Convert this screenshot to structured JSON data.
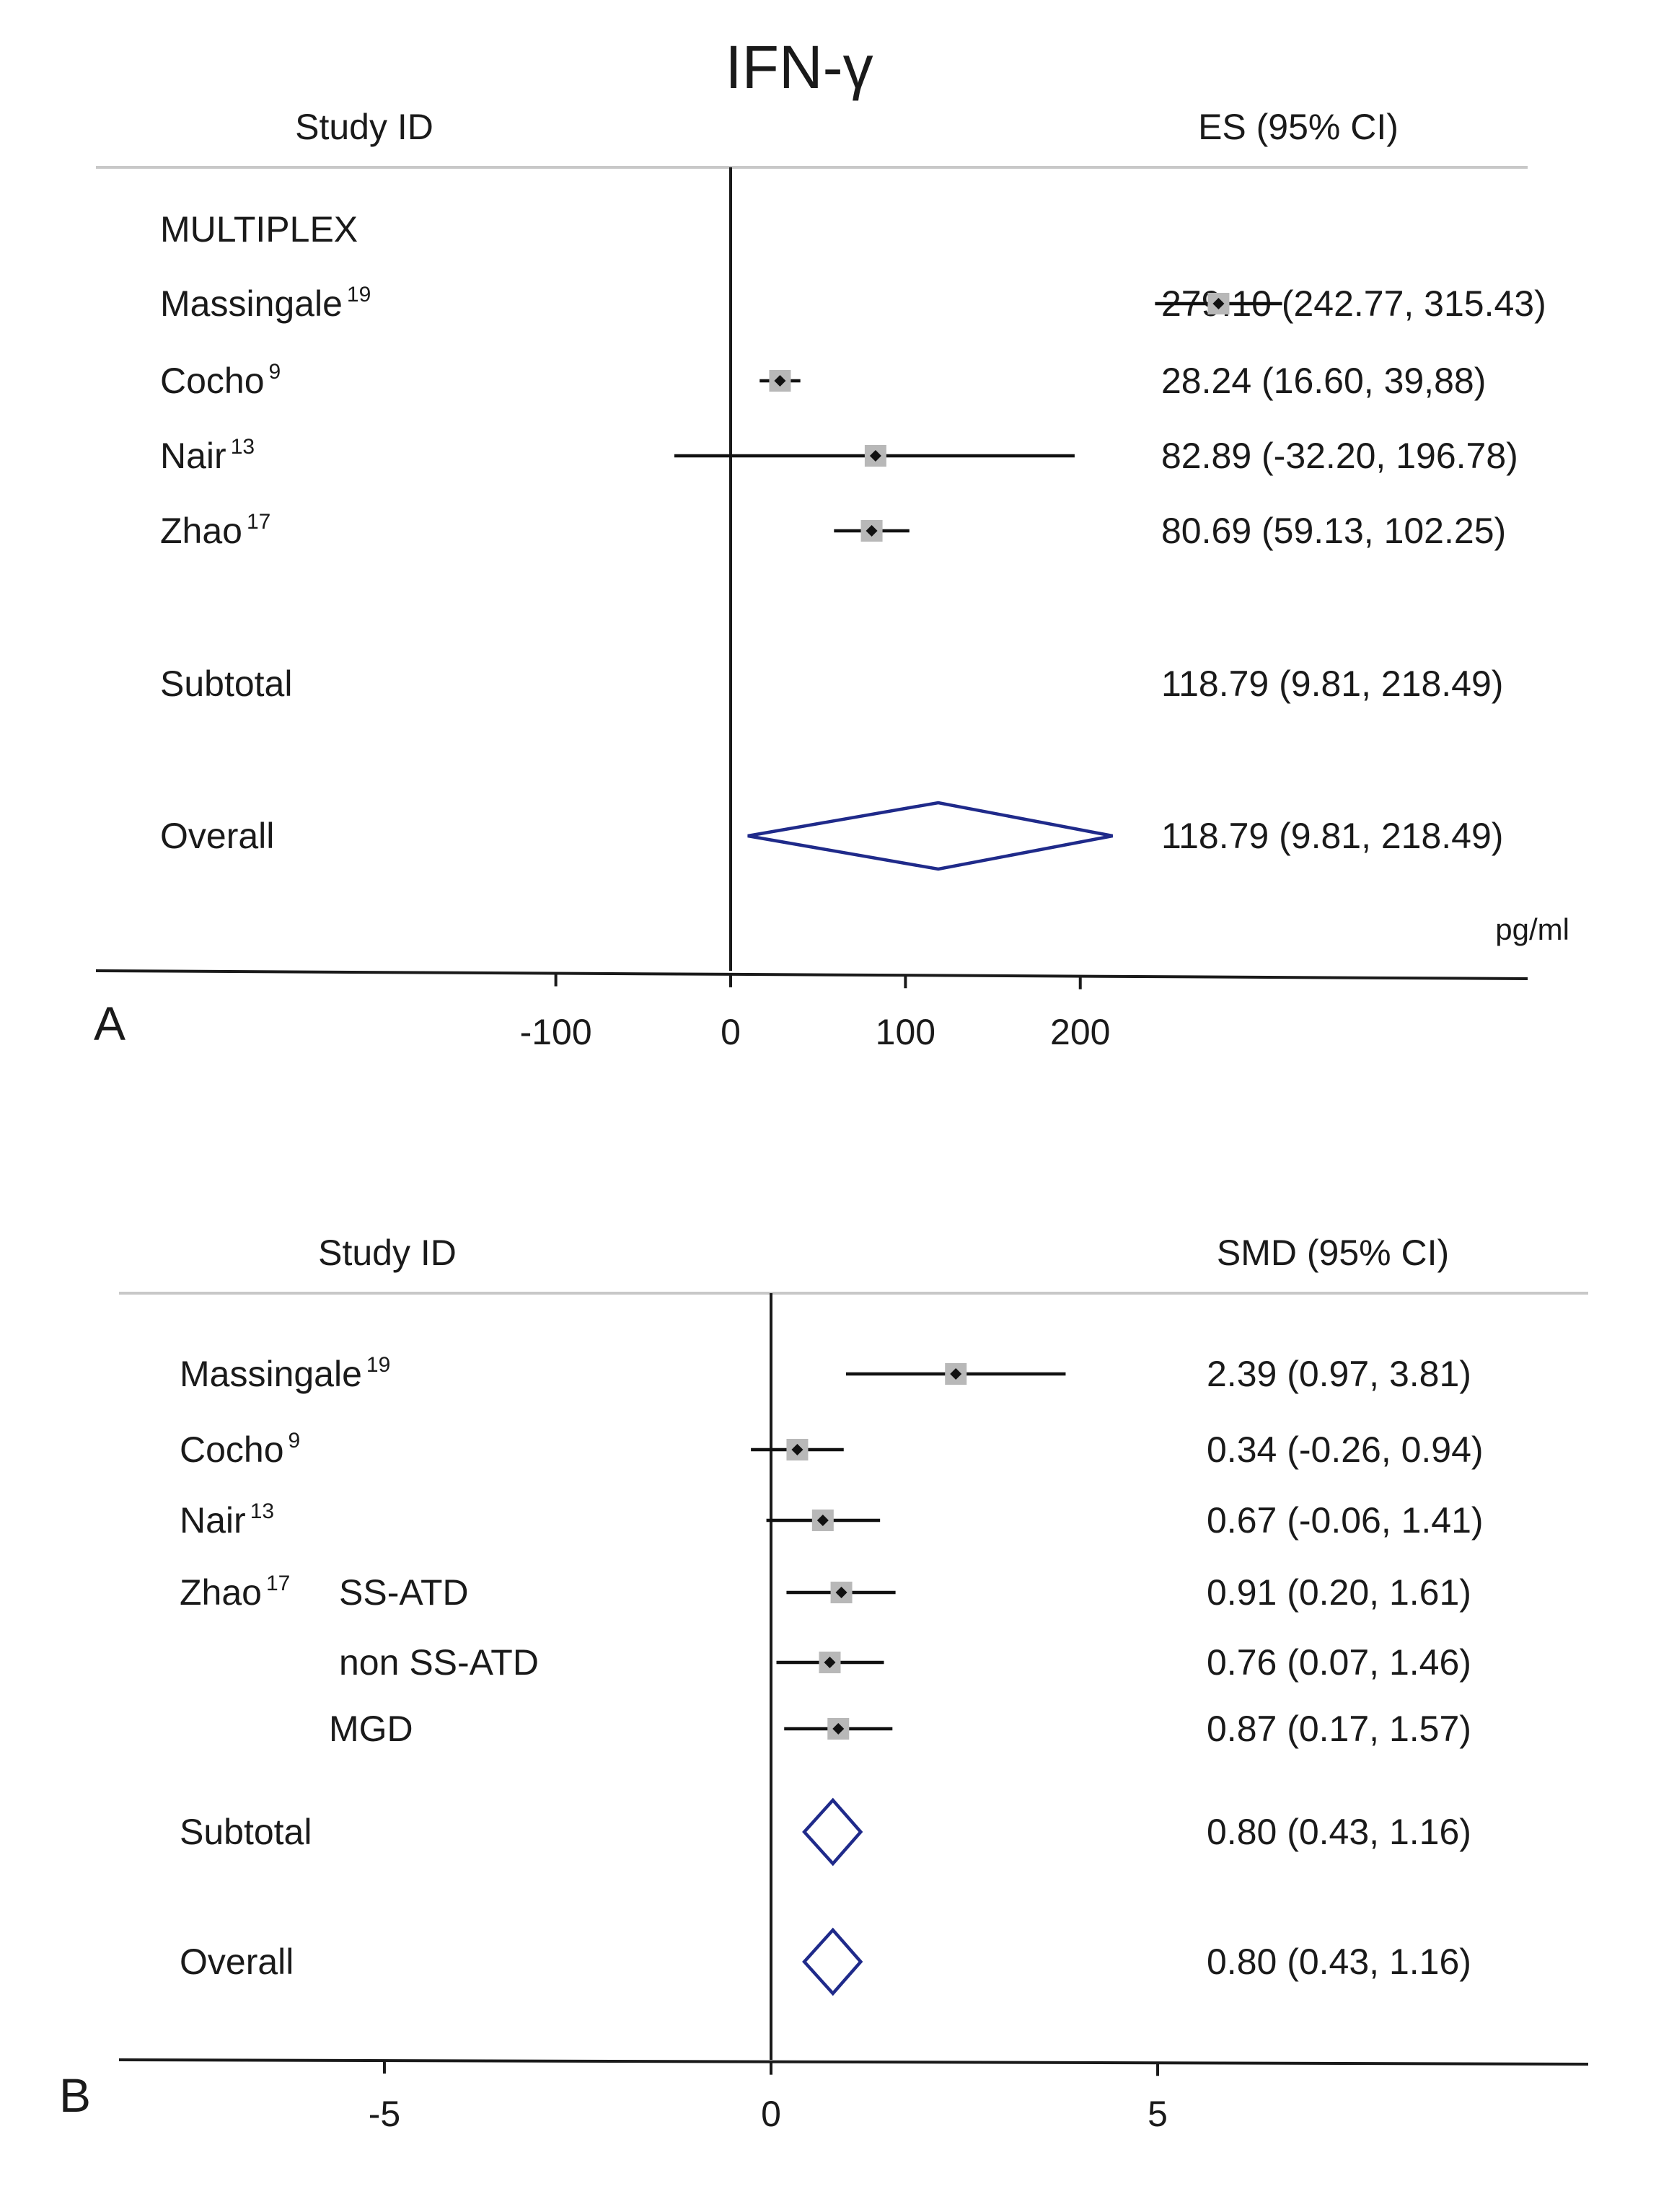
{
  "chart_data": [
    {
      "type": "forest",
      "panel": "A",
      "title": "IFN-γ",
      "header_left": "Study ID",
      "header_right": "ES (95% CI)",
      "xlabel": "pg/ml",
      "ticks": [
        -100,
        0,
        100,
        200
      ],
      "xlim": [
        -364,
        455
      ],
      "rows": [
        {
          "kind": "group",
          "label": "MULTIPLEX"
        },
        {
          "kind": "study",
          "label": "Massingale",
          "sup": "19",
          "es": 279.1,
          "lo": 242.77,
          "hi": 315.43,
          "text": "279.10 (242.77, 315.43)"
        },
        {
          "kind": "study",
          "label": "Cocho",
          "sup": "9",
          "es": 28.24,
          "lo": 16.6,
          "hi": 39.88,
          "text": "28.24 (16.60, 39,88)"
        },
        {
          "kind": "study",
          "label": "Nair",
          "sup": "13",
          "es": 82.89,
          "lo": -32.2,
          "hi": 196.78,
          "text": "82.89 (-32.20, 196.78)"
        },
        {
          "kind": "study",
          "label": "Zhao",
          "sup": "17",
          "es": 80.69,
          "lo": 59.13,
          "hi": 102.25,
          "text": "80.69 (59.13, 102.25)"
        },
        {
          "kind": "subtotal",
          "label": "Subtotal",
          "es": 118.79,
          "lo": 9.81,
          "hi": 218.49,
          "text": "118.79 (9.81, 218.49)"
        },
        {
          "kind": "overall",
          "label": "Overall",
          "es": 118.79,
          "lo": 9.81,
          "hi": 218.49,
          "text": "118.79 (9.81, 218.49)"
        }
      ]
    },
    {
      "type": "forest",
      "panel": "B",
      "header_left": "Study ID",
      "header_right": "SMD (95% CI)",
      "ticks": [
        -5,
        0,
        5
      ],
      "xlim": [
        -8.5,
        10.5
      ],
      "rows": [
        {
          "kind": "study",
          "label": "Massingale",
          "sup": "19",
          "es": 2.39,
          "lo": 0.97,
          "hi": 3.81,
          "text": "2.39 (0.97, 3.81)"
        },
        {
          "kind": "study",
          "label": "Cocho",
          "sup": "9",
          "es": 0.34,
          "lo": -0.26,
          "hi": 0.94,
          "text": "0.34 (-0.26, 0.94)"
        },
        {
          "kind": "study",
          "label": "Nair",
          "sup": "13",
          "es": 0.67,
          "lo": -0.06,
          "hi": 1.41,
          "text": "0.67 (-0.06, 1.41)"
        },
        {
          "kind": "study",
          "label": "Zhao",
          "sup": "17",
          "sublabel": "SS-ATD",
          "es": 0.91,
          "lo": 0.2,
          "hi": 1.61,
          "text": "0.91 (0.20, 1.61)"
        },
        {
          "kind": "study",
          "label": "",
          "sublabel": "non SS-ATD",
          "es": 0.76,
          "lo": 0.07,
          "hi": 1.46,
          "text": "0.76 (0.07, 1.46)"
        },
        {
          "kind": "study",
          "label": "",
          "sublabel": "MGD",
          "es": 0.87,
          "lo": 0.17,
          "hi": 1.57,
          "text": "0.87 (0.17, 1.57)"
        },
        {
          "kind": "subtotal",
          "label": "Subtotal",
          "es": 0.8,
          "lo": 0.43,
          "hi": 1.16,
          "text": "0.80 (0.43, 1.16)"
        },
        {
          "kind": "overall",
          "label": "Overall",
          "es": 0.8,
          "lo": 0.43,
          "hi": 1.16,
          "text": "0.80 (0.43, 1.16)"
        }
      ]
    }
  ],
  "colors": {
    "diamond": "#1f2a8a",
    "box": "#b8b8b8",
    "line": "#111111",
    "rule": "#c8c8c8"
  }
}
